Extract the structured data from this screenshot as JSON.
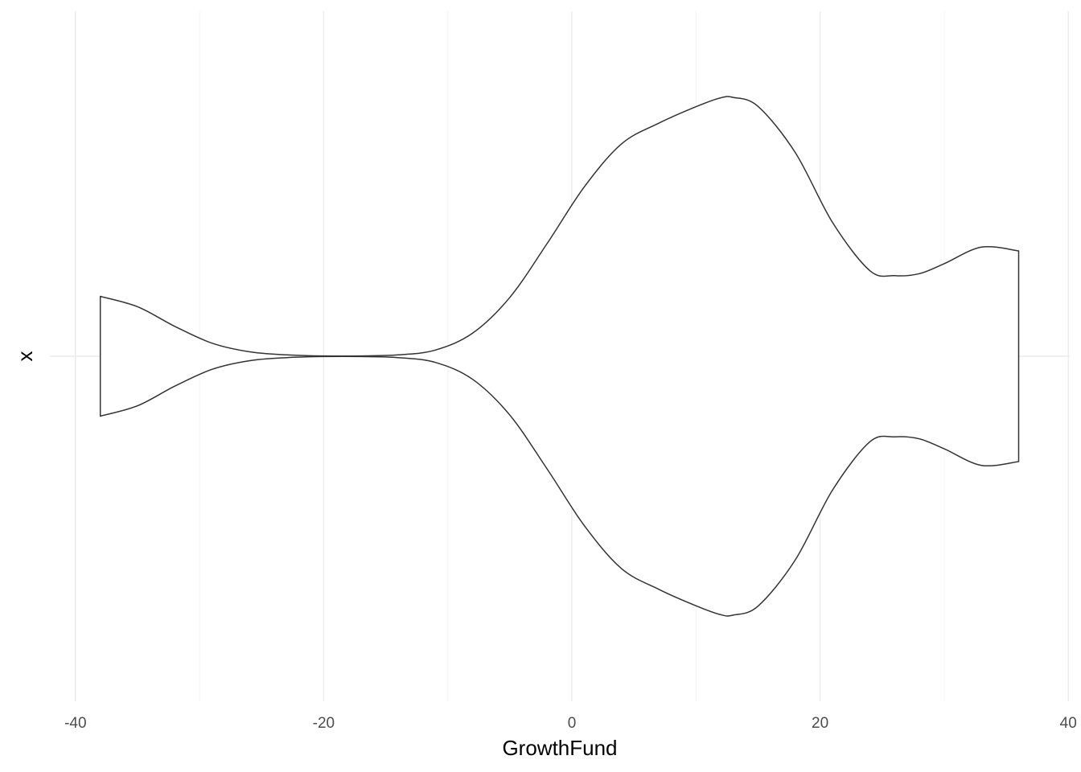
{
  "chart_data": {
    "type": "violin",
    "xlabel": "GrowthFund",
    "ylabel": "x",
    "categories": [
      "x"
    ],
    "xlim": [
      -42,
      40
    ],
    "x_ticks": [
      -40,
      -20,
      0,
      20,
      40
    ],
    "x_tick_labels": [
      "-40",
      "-20",
      "0",
      "20",
      "40"
    ],
    "grid": true,
    "legend": "none",
    "outline_color": "#333333",
    "fill_color": "#ffffff",
    "density_profile": [
      {
        "x": -38.0,
        "width": 0.174
      },
      {
        "x": -35.0,
        "width": 0.144
      },
      {
        "x": -32.0,
        "width": 0.087
      },
      {
        "x": -29.0,
        "width": 0.038
      },
      {
        "x": -26.0,
        "width": 0.013
      },
      {
        "x": -23.0,
        "width": 0.004
      },
      {
        "x": -20.0,
        "width": 0.001
      },
      {
        "x": -17.0,
        "width": 0.001
      },
      {
        "x": -14.0,
        "width": 0.004
      },
      {
        "x": -11.0,
        "width": 0.018
      },
      {
        "x": -8.0,
        "width": 0.067
      },
      {
        "x": -5.0,
        "width": 0.171
      },
      {
        "x": -2.0,
        "width": 0.327
      },
      {
        "x": 1.0,
        "width": 0.492
      },
      {
        "x": 4.0,
        "width": 0.617
      },
      {
        "x": 7.0,
        "width": 0.677
      },
      {
        "x": 10.0,
        "width": 0.725
      },
      {
        "x": 12.0,
        "width": 0.751
      },
      {
        "x": 13.0,
        "width": 0.752
      },
      {
        "x": 15.0,
        "width": 0.726
      },
      {
        "x": 18.0,
        "width": 0.592
      },
      {
        "x": 21.0,
        "width": 0.389
      },
      {
        "x": 24.0,
        "width": 0.249
      },
      {
        "x": 26.0,
        "width": 0.234
      },
      {
        "x": 28.0,
        "width": 0.24
      },
      {
        "x": 30.0,
        "width": 0.269
      },
      {
        "x": 33.0,
        "width": 0.317
      },
      {
        "x": 36.0,
        "width": 0.306
      }
    ]
  }
}
